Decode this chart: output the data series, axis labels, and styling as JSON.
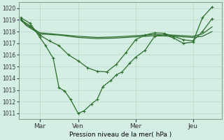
{
  "bg_color": "#d4eee4",
  "grid_color": "#b8d8c8",
  "line_color": "#2d6e2d",
  "xlabel": "Pression niveau de la mer( hPa )",
  "ylim": [
    1010.5,
    1020.5
  ],
  "yticks": [
    1011,
    1012,
    1013,
    1014,
    1015,
    1016,
    1017,
    1018,
    1019,
    1020
  ],
  "xtick_labels": [
    "Mar",
    "Ven",
    "Mer",
    "Jeu"
  ],
  "xtick_positions": [
    1,
    3,
    6,
    9
  ],
  "xlim": [
    -0.1,
    10.5
  ],
  "line_flat1_x": [
    0,
    0.3,
    1,
    2,
    3,
    4,
    5,
    6,
    7,
    8,
    9,
    9.5,
    10
  ],
  "line_flat1_y": [
    1019.0,
    1018.5,
    1017.8,
    1017.7,
    1017.5,
    1017.4,
    1017.45,
    1017.55,
    1017.65,
    1017.6,
    1017.5,
    1017.6,
    1018.0
  ],
  "line_flat2_x": [
    0,
    0.3,
    1,
    2,
    3,
    4,
    5,
    6,
    7,
    8,
    9,
    9.5,
    10
  ],
  "line_flat2_y": [
    1019.1,
    1018.6,
    1017.9,
    1017.75,
    1017.6,
    1017.5,
    1017.55,
    1017.65,
    1017.75,
    1017.7,
    1017.6,
    1017.8,
    1018.4
  ],
  "line_medium_x": [
    0,
    0.5,
    1,
    1.5,
    2,
    2.5,
    3,
    3.5,
    4,
    4.5,
    5,
    5.5,
    6,
    6.5,
    7,
    7.5,
    8,
    8.5,
    9,
    9.5,
    10
  ],
  "line_medium_y": [
    1019.0,
    1018.5,
    1017.7,
    1017.2,
    1016.8,
    1016.0,
    1015.5,
    1014.9,
    1014.6,
    1014.55,
    1015.2,
    1016.2,
    1017.3,
    1017.7,
    1017.9,
    1017.85,
    1017.6,
    1017.3,
    1017.2,
    1018.0,
    1019.1
  ],
  "line_deep_x": [
    0,
    0.5,
    1,
    1.3,
    1.7,
    2,
    2.3,
    2.6,
    3,
    3.3,
    3.7,
    4,
    4.3,
    4.7,
    5,
    5.3,
    5.7,
    6,
    6.5,
    7,
    7.5,
    8,
    8.5,
    9,
    9.5,
    10
  ],
  "line_deep_y": [
    1019.2,
    1018.7,
    1017.5,
    1016.8,
    1015.7,
    1013.2,
    1012.9,
    1012.2,
    1011.0,
    1011.2,
    1011.8,
    1012.2,
    1013.3,
    1013.8,
    1014.3,
    1014.55,
    1015.3,
    1015.8,
    1016.4,
    1017.6,
    1017.75,
    1017.45,
    1017.0,
    1017.1,
    1019.2,
    1020.1
  ]
}
